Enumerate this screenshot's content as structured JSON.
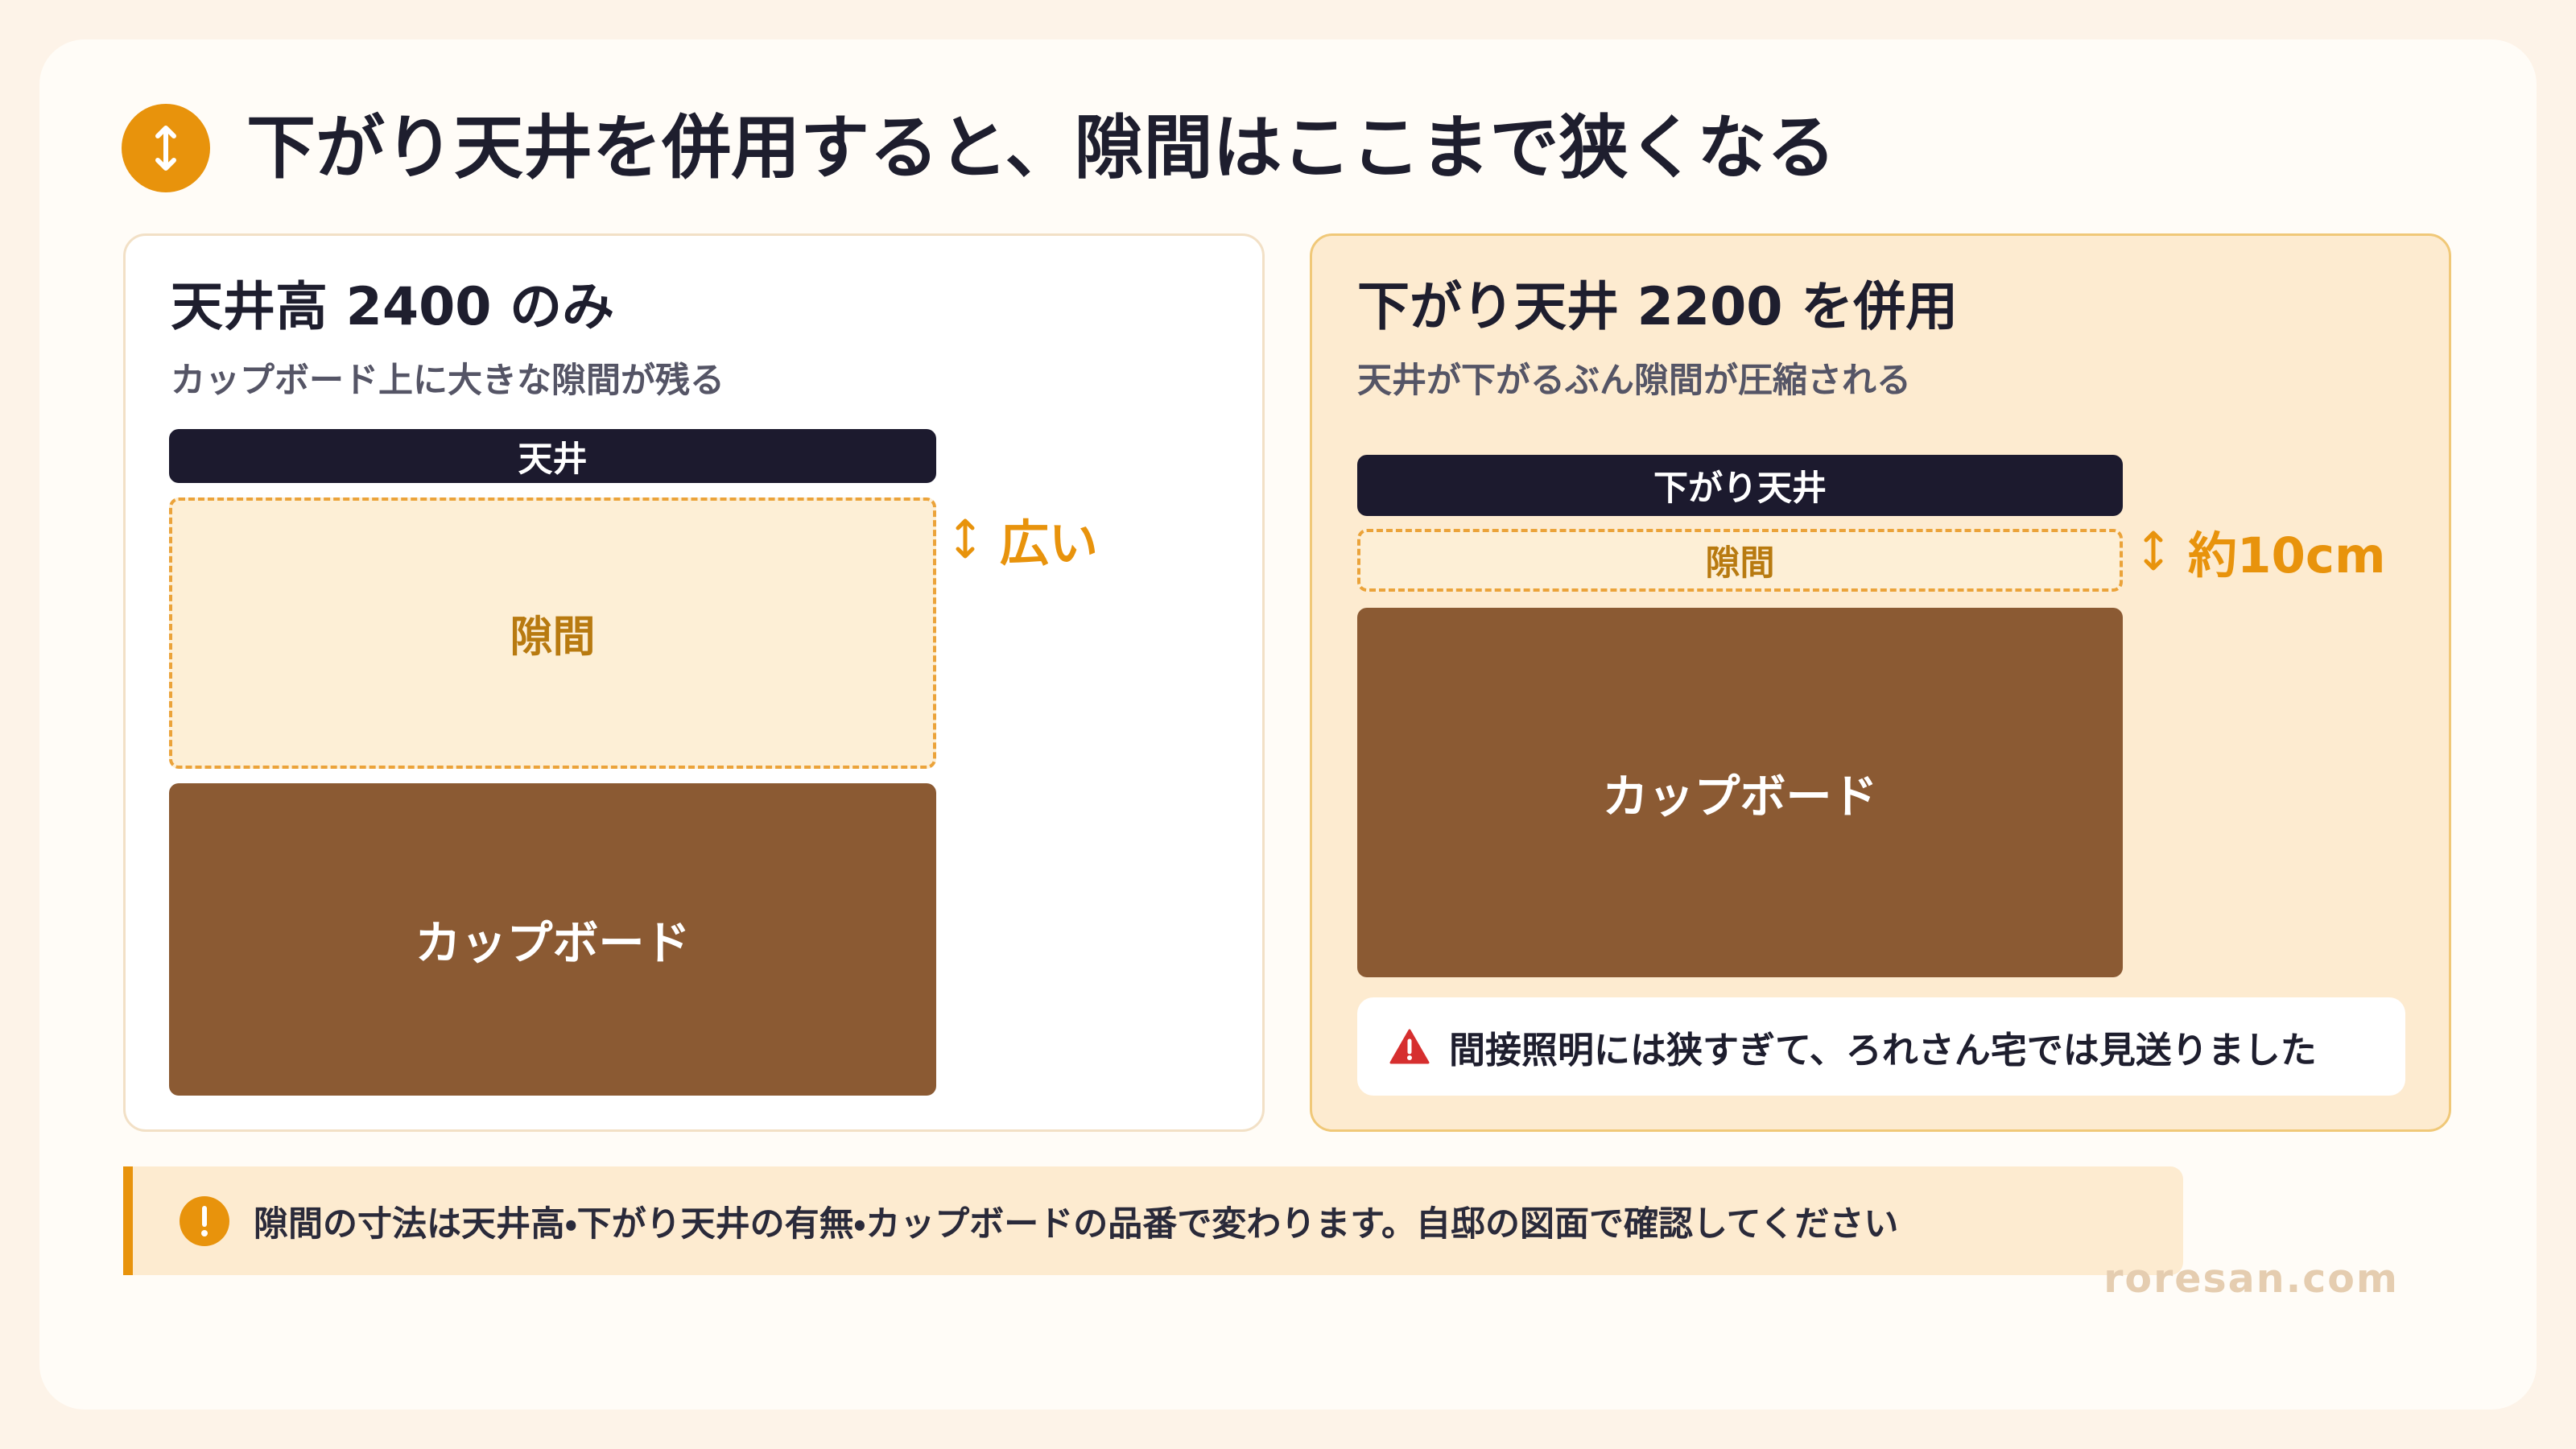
{
  "header": {
    "title": "下がり天井を併用すると、隙間はここまで狭くなる"
  },
  "panels": [
    {
      "heading": "天井高 2400 のみ",
      "subtitle": "カップボード上に大きな隙間が残る",
      "ceiling": "天井",
      "gap": "隙間",
      "measure": "広い",
      "cupboard": "カップボード"
    },
    {
      "heading": "下がり天井 2200 を併用",
      "subtitle": "天井が下がるぶん隙間が圧縮される",
      "ceiling": "下がり天井",
      "gap": "隙間",
      "measure": "約10cm",
      "cupboard": "カップボード",
      "warning": "間接照明には狭すぎて、ろれさん宅では見送りました"
    }
  ],
  "note": "隙間の寸法は天井高・下がり天井の有無・カップボードの品番で変わります。自邸の図面で確認してください",
  "footer": "roresan.com"
}
